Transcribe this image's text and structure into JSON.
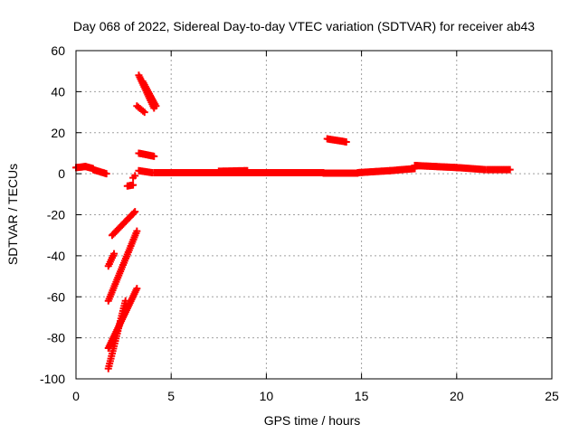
{
  "chart_data": {
    "type": "scatter",
    "title": "Day 068 of 2022, Sidereal Day-to-day VTEC variation (SDTVAR) for receiver ab43",
    "xlabel": "GPS time / hours",
    "ylabel": "SDTVAR / TECUs",
    "xlim": [
      0,
      25
    ],
    "ylim": [
      -100,
      60
    ],
    "xticks": [
      0,
      5,
      10,
      15,
      20,
      25
    ],
    "yticks": [
      -100,
      -80,
      -60,
      -40,
      -20,
      0,
      20,
      40,
      60
    ],
    "xtick_labels": [
      "0",
      "5",
      "10",
      "15",
      "20",
      "25"
    ],
    "ytick_labels": [
      "-100",
      "-80",
      "-60",
      "-40",
      "-20",
      "0",
      "20",
      "40",
      "60"
    ],
    "grid": true,
    "marker": "plus",
    "marker_color": "#ff0000",
    "series": [
      {
        "name": "SDTVAR",
        "segments": [
          {
            "x0": 0.0,
            "y0": 3.0,
            "x1": 0.5,
            "y1": 3.5,
            "n": 10
          },
          {
            "x0": 0.5,
            "y0": 3.5,
            "x1": 0.9,
            "y1": 2.5,
            "n": 8
          },
          {
            "x0": 0.9,
            "y0": 2.0,
            "x1": 1.6,
            "y1": 0.0,
            "n": 12
          },
          {
            "x0": 2.7,
            "y0": -6.0,
            "x1": 3.0,
            "y1": -5.5,
            "n": 5
          },
          {
            "x0": 3.0,
            "y0": -2.0,
            "x1": 3.1,
            "y1": -1.0,
            "n": 2
          },
          {
            "x0": 3.3,
            "y0": 48.0,
            "x1": 4.1,
            "y1": 32.0,
            "n": 18
          },
          {
            "x0": 3.5,
            "y0": 45.0,
            "x1": 4.2,
            "y1": 33.0,
            "n": 15
          },
          {
            "x0": 3.2,
            "y0": 33.0,
            "x1": 3.6,
            "y1": 30.0,
            "n": 6
          },
          {
            "x0": 3.3,
            "y0": 10.0,
            "x1": 4.1,
            "y1": 8.5,
            "n": 12
          },
          {
            "x0": 3.3,
            "y0": 1.5,
            "x1": 4.0,
            "y1": 0.5,
            "n": 10
          },
          {
            "x0": 1.9,
            "y0": -30.0,
            "x1": 3.1,
            "y1": -18.5,
            "n": 20
          },
          {
            "x0": 1.7,
            "y0": -45.0,
            "x1": 2.0,
            "y1": -39.0,
            "n": 7
          },
          {
            "x0": 1.7,
            "y0": -62.0,
            "x1": 3.2,
            "y1": -28.0,
            "n": 34
          },
          {
            "x0": 1.7,
            "y0": -85.0,
            "x1": 3.2,
            "y1": -56.0,
            "n": 34
          },
          {
            "x0": 1.7,
            "y0": -95.0,
            "x1": 2.6,
            "y1": -62.0,
            "n": 28
          },
          {
            "x0": 4.1,
            "y0": 0.5,
            "x1": 13.0,
            "y1": 0.5,
            "n": 150
          },
          {
            "x0": 7.5,
            "y0": 1.2,
            "x1": 9.0,
            "y1": 1.5,
            "n": 20
          },
          {
            "x0": 13.2,
            "y0": 17.0,
            "x1": 14.2,
            "y1": 15.5,
            "n": 14
          },
          {
            "x0": 13.0,
            "y0": 0.3,
            "x1": 14.8,
            "y1": 0.3,
            "n": 25
          },
          {
            "x0": 14.8,
            "y0": 0.5,
            "x1": 16.5,
            "y1": 1.5,
            "n": 25
          },
          {
            "x0": 16.5,
            "y0": 1.5,
            "x1": 17.8,
            "y1": 2.5,
            "n": 18
          },
          {
            "x0": 17.8,
            "y0": 4.0,
            "x1": 20.0,
            "y1": 3.0,
            "n": 35
          },
          {
            "x0": 20.0,
            "y0": 3.0,
            "x1": 21.5,
            "y1": 2.0,
            "n": 20
          },
          {
            "x0": 21.6,
            "y0": 2.0,
            "x1": 22.8,
            "y1": 2.0,
            "n": 16
          }
        ]
      }
    ]
  }
}
